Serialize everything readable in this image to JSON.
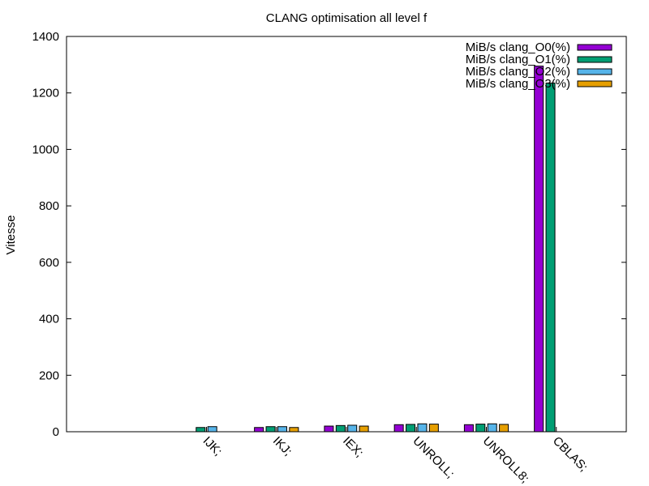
{
  "chart_data": {
    "type": "bar",
    "title": "CLANG optimisation all level f",
    "xlabel": "",
    "ylabel": "Vitesse",
    "ylim": [
      0,
      1400
    ],
    "yticks": [
      0,
      200,
      400,
      600,
      800,
      1000,
      1200,
      1400
    ],
    "grid": false,
    "legend_position": "top-right",
    "categories": [
      "IJK;",
      "IKJ;",
      "IEX;",
      "UNROLL;",
      "UNROLL8;",
      "CBLAS;"
    ],
    "series": [
      {
        "name": "MiB/s clang_O0(%)",
        "color": "#9400d3",
        "values": [
          null,
          15,
          20,
          25,
          25,
          1295
        ]
      },
      {
        "name": "MiB/s clang_O1(%)",
        "color": "#009e73",
        "values": [
          15,
          18,
          22,
          26,
          27,
          1235
        ]
      },
      {
        "name": "MiB/s clang_O2(%)",
        "color": "#56b4e9",
        "values": [
          18,
          18,
          23,
          28,
          28,
          null
        ]
      },
      {
        "name": "MiB/s clang_O3(%)",
        "color": "#e69f00",
        "values": [
          null,
          15,
          20,
          27,
          26,
          null
        ]
      }
    ]
  }
}
